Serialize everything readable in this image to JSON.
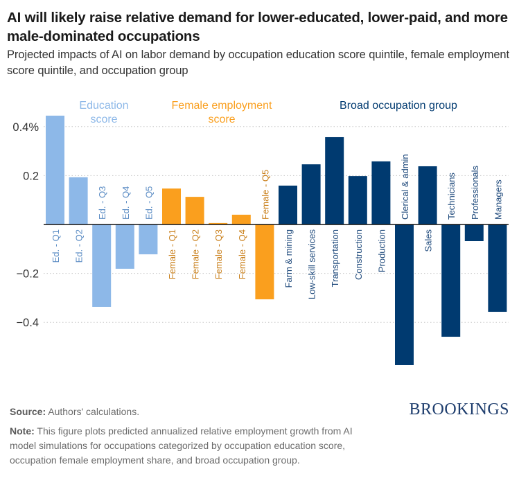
{
  "header": {
    "title": "AI will likely raise relative demand for lower-educated, lower-paid, and more male-dominated occupations",
    "subtitle": "Projected impacts of AI on labor demand by occupation education score quintile, female employment score quintile, and occupation group"
  },
  "footer": {
    "source_label": "Source:",
    "source_text": " Authors' calculations.",
    "note_label": "Note:",
    "note_text": " This figure plots predicted annualized relative employment growth from AI model simulations for occupations categorized by occupation education score, occupation female employment share, and broad occupation group.",
    "brand": "BROOKINGS"
  },
  "colors": {
    "education": "#8db8e8",
    "education_label": "#5b8cc4",
    "female": "#fa9f1e",
    "female_label": "#c97f1a",
    "occupation": "#003a70",
    "occupation_label": "#1f4a7c",
    "gridline": "#c8c8c8",
    "axis": "#111111"
  },
  "chart_data": {
    "type": "bar",
    "title": "AI will likely raise relative demand for lower-educated, lower-paid, and more male-dominated occupations",
    "xlabel": "",
    "ylabel": "",
    "ylim": [
      -0.6,
      0.45
    ],
    "yticks": [
      0.4,
      0.2,
      -0.2,
      -0.4
    ],
    "ytick_labels": [
      "0.4%",
      "0.2",
      "−0.2",
      "−0.4"
    ],
    "grid": true,
    "groups": [
      {
        "name": "Education score",
        "key": "education",
        "label_lines": [
          "Education",
          "score"
        ]
      },
      {
        "name": "Female employment score",
        "key": "female",
        "label_lines": [
          "Female employment",
          "score"
        ]
      },
      {
        "name": "Broad occupation group",
        "key": "occupation",
        "label_lines": [
          "Broad occupation group"
        ]
      }
    ],
    "categories": [
      "Ed. - Q1",
      "Ed. - Q2",
      "Ed. - Q3",
      "Ed. - Q4",
      "Ed. - Q5",
      "Female - Q1",
      "Female - Q2",
      "Female - Q3",
      "Female - Q4",
      "Female - Q5",
      "Farm & mining",
      "Low-skill services",
      "Transportation",
      "Construction",
      "Production",
      "Clerical & admin",
      "Sales",
      "Technicians",
      "Professionals",
      "Managers"
    ],
    "group_of": [
      "education",
      "education",
      "education",
      "education",
      "education",
      "female",
      "female",
      "female",
      "female",
      "female",
      "occupation",
      "occupation",
      "occupation",
      "occupation",
      "occupation",
      "occupation",
      "occupation",
      "occupation",
      "occupation",
      "occupation"
    ],
    "values": [
      0.445,
      0.193,
      -0.337,
      -0.181,
      -0.122,
      0.147,
      0.113,
      0.006,
      0.04,
      -0.306,
      0.159,
      0.246,
      0.357,
      0.198,
      0.258,
      -0.575,
      0.238,
      -0.459,
      -0.068,
      -0.357
    ]
  }
}
